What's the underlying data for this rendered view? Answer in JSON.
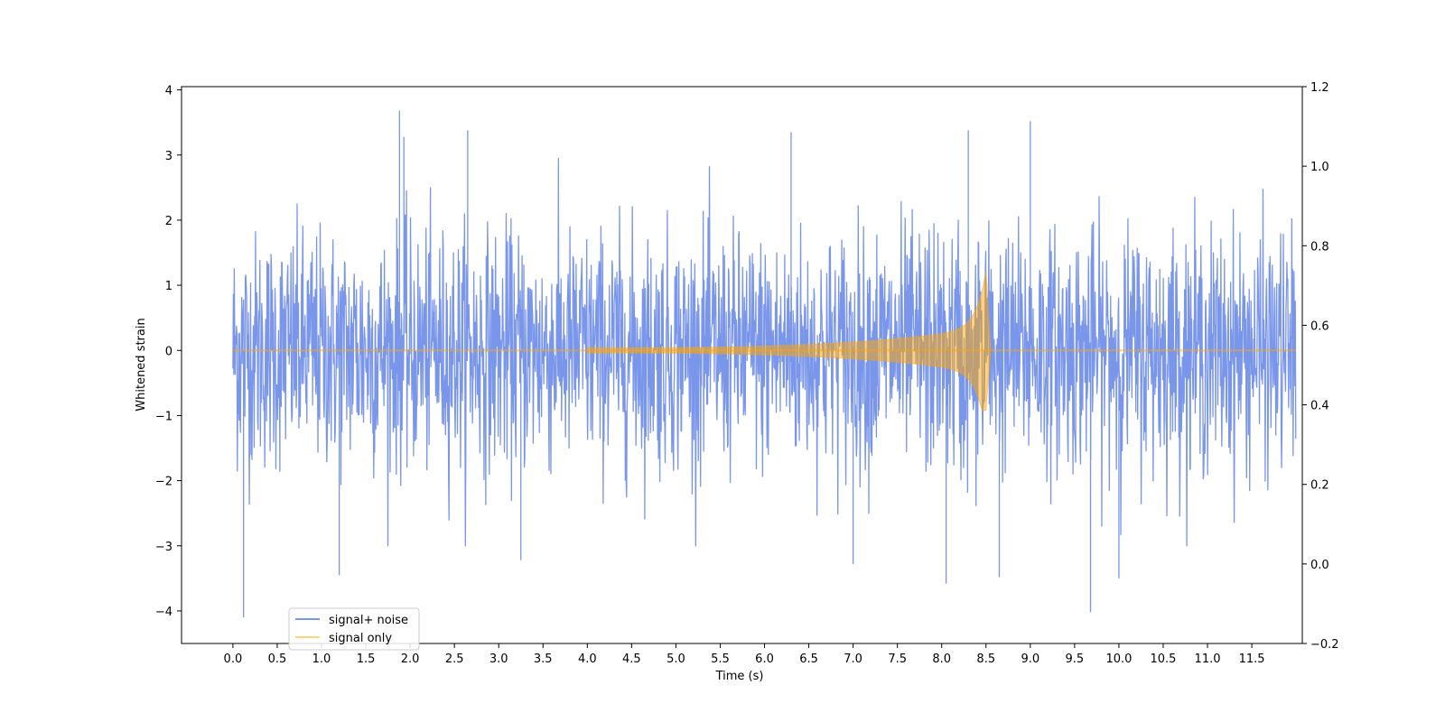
{
  "chart_data": {
    "type": "line",
    "title": "",
    "xlabel": "Time (s)",
    "ylabel": "Whitened strain",
    "xlim": [
      -0.58,
      12.07
    ],
    "ylim": [
      -4.5,
      4.05
    ],
    "y2lim": [
      -0.2,
      1.2
    ],
    "grid": false,
    "legend_position": "lower-left",
    "x_ticks": [
      "0.0",
      "0.5",
      "1.0",
      "1.5",
      "2.0",
      "2.5",
      "3.0",
      "3.5",
      "4.0",
      "4.5",
      "5.0",
      "5.5",
      "6.0",
      "6.5",
      "7.0",
      "7.5",
      "8.0",
      "8.5",
      "9.0",
      "9.5",
      "10.0",
      "10.5",
      "11.0",
      "11.5"
    ],
    "x_tick_values": [
      0.0,
      0.5,
      1.0,
      1.5,
      2.0,
      2.5,
      3.0,
      3.5,
      4.0,
      4.5,
      5.0,
      5.5,
      6.0,
      6.5,
      7.0,
      7.5,
      8.0,
      8.5,
      9.0,
      9.5,
      10.0,
      10.5,
      11.0,
      11.5
    ],
    "y_ticks": [
      "4",
      "3",
      "2",
      "1",
      "0",
      "−1",
      "−2",
      "−3",
      "−4"
    ],
    "y_tick_values": [
      4,
      3,
      2,
      1,
      0,
      -1,
      -2,
      -3,
      -4
    ],
    "y2_ticks": [
      "1.2",
      "1.0",
      "0.8",
      "0.6",
      "0.4",
      "0.2",
      "0.0",
      "−0.2"
    ],
    "y2_tick_values": [
      1.2,
      1.0,
      0.8,
      0.6,
      0.4,
      0.2,
      0.0,
      -0.2
    ],
    "series": [
      {
        "name": "signal+ noise",
        "color": "#4169e1",
        "opacity": 0.7,
        "description_range": [
          0.0,
          11.996
        ],
        "noise_std": 0.9,
        "peaks": [
          {
            "x": 0.12,
            "y": -4.1
          },
          {
            "x": 1.2,
            "y": -3.45
          },
          {
            "x": 1.88,
            "y": 3.68
          },
          {
            "x": 1.93,
            "y": 3.28
          },
          {
            "x": 2.65,
            "y": 3.38
          },
          {
            "x": 3.25,
            "y": -3.22
          },
          {
            "x": 6.3,
            "y": 3.35
          },
          {
            "x": 7.0,
            "y": -3.28
          },
          {
            "x": 8.05,
            "y": -3.58
          },
          {
            "x": 8.3,
            "y": 3.38
          },
          {
            "x": 8.65,
            "y": -3.48
          },
          {
            "x": 9.0,
            "y": 3.52
          },
          {
            "x": 9.68,
            "y": -4.02
          },
          {
            "x": 10.0,
            "y": -3.5
          }
        ]
      },
      {
        "name": "signal only",
        "color": "#ffa500",
        "opacity": 0.5,
        "chirp": {
          "start": 4.0,
          "merger": 8.5,
          "end": 8.55,
          "peak_amplitude": 1.22,
          "min_amplitude": -0.92
        }
      }
    ]
  }
}
